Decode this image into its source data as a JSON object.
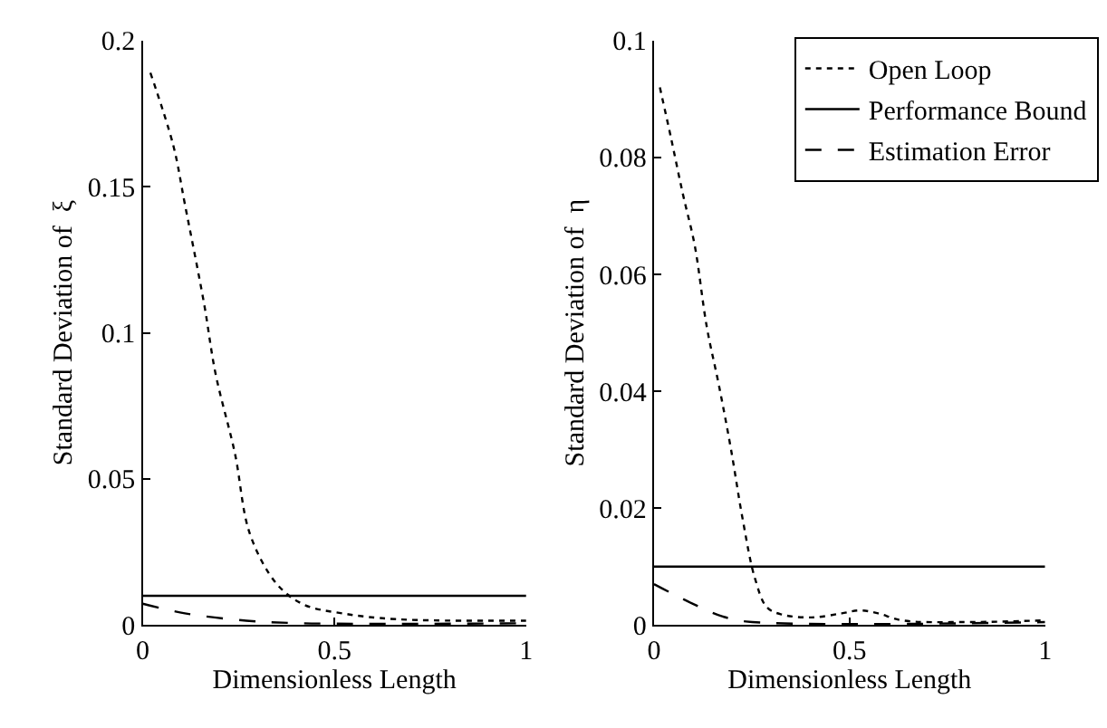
{
  "chart_data": [
    {
      "type": "line",
      "xlabel": "Dimensionless Length",
      "ylabel": "Standard Deviation of  ξ",
      "xlim": [
        0,
        1
      ],
      "xticks": [
        0,
        0.5,
        1
      ],
      "ylim": [
        0,
        0.2
      ],
      "yticks": [
        0,
        0.05,
        0.1,
        0.15,
        0.2
      ],
      "series": [
        {
          "color": "#000000",
          "line_style": "dotted",
          "x": [
            0.02,
            0.08,
            0.11,
            0.16,
            0.19,
            0.24,
            0.28,
            0.35,
            0.42,
            0.52,
            0.66,
            1
          ],
          "values": [
            0.189,
            0.164,
            0.144,
            0.11,
            0.086,
            0.059,
            0.031,
            0.014,
            0.007,
            0.004,
            0.002,
            0.0015
          ]
        },
        {
          "color": "#000000",
          "line_style": "solid",
          "x": [
            0,
            1
          ],
          "values": [
            0.01,
            0.01
          ]
        },
        {
          "color": "#000000",
          "line_style": "dashed",
          "x": [
            0,
            0.11,
            0.27,
            0.42,
            1
          ],
          "values": [
            0.0073,
            0.004,
            0.0015,
            0.0006,
            0.0006
          ]
        }
      ]
    },
    {
      "type": "line",
      "xlabel": "Dimensionless Length",
      "ylabel": "Standard Deviation of  η",
      "xlim": [
        0,
        1
      ],
      "xticks": [
        0,
        0.5,
        1
      ],
      "ylim": [
        0,
        0.1
      ],
      "yticks": [
        0,
        0.02,
        0.04,
        0.06,
        0.08,
        0.1
      ],
      "legend": "top right",
      "series": [
        {
          "name": "Open Loop",
          "color": "#000000",
          "line_style": "dotted",
          "x": [
            0.015,
            0.043,
            0.074,
            0.104,
            0.135,
            0.166,
            0.197,
            0.227,
            0.258,
            0.289,
            0.327,
            0.404,
            0.48,
            0.527,
            0.573,
            0.634,
            0.79,
            1
          ],
          "values": [
            0.092,
            0.0835,
            0.0737,
            0.065,
            0.051,
            0.041,
            0.03,
            0.018,
            0.008,
            0.003,
            0.0018,
            0.0013,
            0.002,
            0.0025,
            0.002,
            0.0008,
            0.0005,
            0.0008
          ]
        },
        {
          "name": "Performance Bound",
          "color": "#000000",
          "line_style": "solid",
          "x": [
            0,
            1
          ],
          "values": [
            0.01,
            0.01
          ]
        },
        {
          "name": "Estimation Error",
          "color": "#000000",
          "line_style": "dashed",
          "x": [
            0,
            0.097,
            0.174,
            0.235,
            1
          ],
          "values": [
            0.007,
            0.0037,
            0.0015,
            0.0006,
            0.0005
          ]
        }
      ]
    }
  ]
}
